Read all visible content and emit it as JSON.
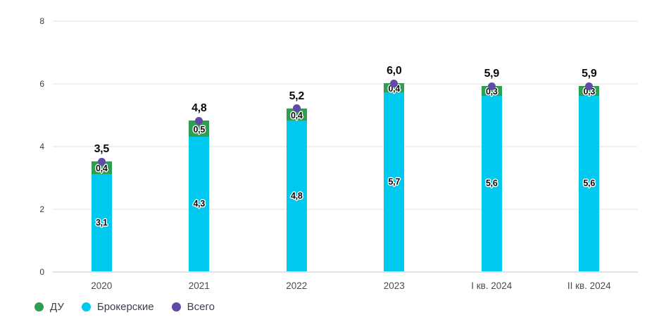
{
  "chart_data": {
    "type": "bar",
    "stacked": true,
    "categories": [
      "2020",
      "2021",
      "2022",
      "2023",
      "I кв. 2024",
      "II кв. 2024"
    ],
    "series": [
      {
        "name": "Брокерские",
        "role": "bottom-segment",
        "color": "#00C9F0",
        "values": [
          3.1,
          4.3,
          4.8,
          5.7,
          5.6,
          5.6
        ],
        "labels": [
          "3,1",
          "4,3",
          "4,8",
          "5,7",
          "5,6",
          "5,6"
        ]
      },
      {
        "name": "ДУ",
        "role": "top-segment",
        "color": "#2E9E53",
        "values": [
          0.4,
          0.5,
          0.4,
          0.4,
          0.3,
          0.3
        ],
        "labels": [
          "0,4",
          "0,5",
          "0,4",
          "0,4",
          "0,3",
          "0,3"
        ]
      },
      {
        "name": "Всего",
        "role": "total-marker",
        "color": "#5F4AA8",
        "values": [
          3.5,
          4.8,
          5.2,
          6.0,
          5.9,
          5.9
        ],
        "labels": [
          "3,5",
          "4,8",
          "5,2",
          "6,0",
          "5,9",
          "5,9"
        ]
      }
    ],
    "ylim": [
      0,
      8
    ],
    "y_ticks": [
      0,
      2,
      4,
      6,
      8
    ],
    "grid": true,
    "legend_position": "bottom-left"
  },
  "legend": {
    "items": [
      {
        "label": "ДУ",
        "color": "#2E9E53"
      },
      {
        "label": "Брокерские",
        "color": "#00C9F0"
      },
      {
        "label": "Всего",
        "color": "#5F4AA8"
      }
    ]
  }
}
